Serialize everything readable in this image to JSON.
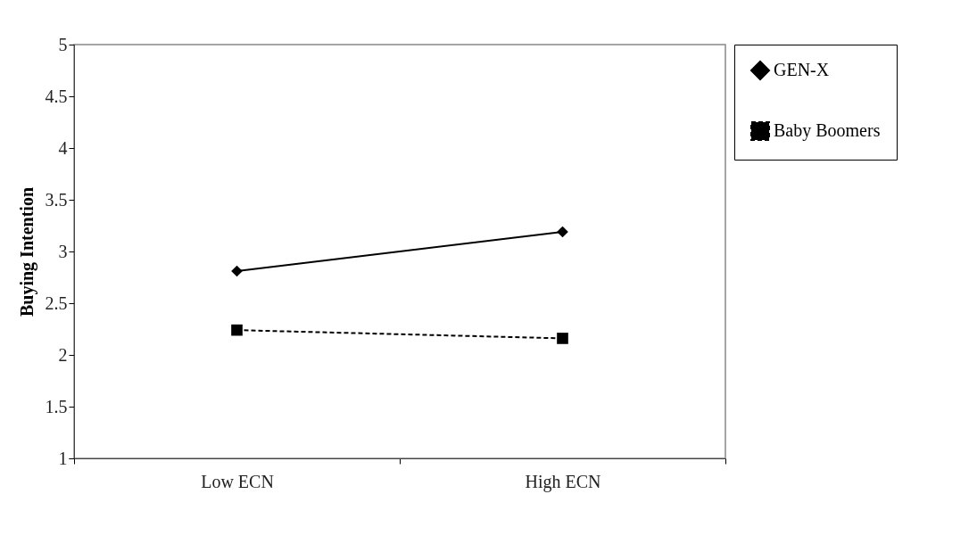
{
  "chart_data": {
    "type": "line",
    "ylabel": "Buying Intention",
    "categories": [
      "Low ECN",
      "High ECN"
    ],
    "series": [
      {
        "name": "GEN-X",
        "color": "#000000",
        "values": [
          2.81,
          3.19
        ],
        "marker": "diamond",
        "line_style": "solid"
      },
      {
        "name": "Baby Boomers",
        "color": "#000000",
        "values": [
          2.24,
          2.16
        ],
        "marker": "square",
        "line_style": "dashed"
      }
    ],
    "ylim": [
      1,
      5
    ],
    "yticks": [
      1,
      1.5,
      2,
      2.5,
      3,
      3.5,
      4,
      4.5,
      5
    ],
    "grid": false,
    "legend": "right"
  }
}
